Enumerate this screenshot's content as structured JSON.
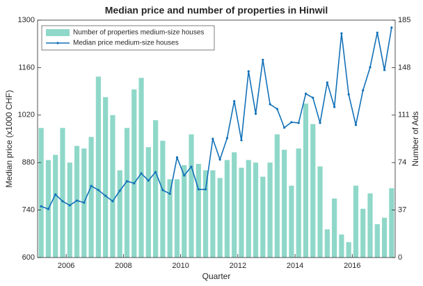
{
  "chart_data": {
    "type": "combo",
    "title": "Median price and number of properties in Hinwil",
    "xlabel": "Quarter",
    "ylabel": "Median price (x1000 CHF)",
    "y2label": "Number of Ads",
    "x": [
      2005.125,
      2005.375,
      2005.625,
      2005.875,
      2006.125,
      2006.375,
      2006.625,
      2006.875,
      2007.125,
      2007.375,
      2007.625,
      2007.875,
      2008.125,
      2008.375,
      2008.625,
      2008.875,
      2009.125,
      2009.375,
      2009.625,
      2009.875,
      2010.125,
      2010.375,
      2010.625,
      2010.875,
      2011.125,
      2011.375,
      2011.625,
      2011.875,
      2012.125,
      2012.375,
      2012.625,
      2012.875,
      2013.125,
      2013.375,
      2013.625,
      2013.875,
      2014.125,
      2014.375,
      2014.625,
      2014.875,
      2015.125,
      2015.375,
      2015.625,
      2015.875,
      2016.125,
      2016.375,
      2016.625,
      2016.875,
      2017.125,
      2017.375
    ],
    "xlim": [
      2005,
      2017.5
    ],
    "xticks": [
      2006,
      2008,
      2010,
      2012,
      2014,
      2016
    ],
    "ylim": [
      600,
      1300
    ],
    "yticks": [
      600,
      740,
      880,
      1020,
      1160,
      1300
    ],
    "y2lim": [
      0,
      185
    ],
    "y2ticks": [
      0,
      37,
      74,
      111,
      148,
      185
    ],
    "legend": "upper left",
    "series": [
      {
        "name": "Number of properties medium-size houses",
        "type": "bar",
        "axis": "y2",
        "color": "#8fd8c9",
        "values": [
          101,
          76,
          80,
          101,
          74,
          87,
          85,
          94,
          141,
          125,
          111,
          68,
          101,
          131,
          140,
          86,
          107,
          91,
          61,
          61,
          72,
          96,
          73,
          68,
          68,
          62,
          76,
          82,
          70,
          76,
          74,
          63,
          74,
          96,
          84,
          56,
          85,
          120,
          104,
          71,
          22,
          46,
          18,
          12,
          56,
          38,
          50,
          26,
          31,
          54
        ]
      },
      {
        "name": "Median price medium-size houses",
        "type": "line",
        "axis": "y",
        "color": "#1170b8",
        "values": [
          751,
          743,
          786,
          766,
          754,
          768,
          762,
          811,
          799,
          782,
          766,
          797,
          825,
          819,
          848,
          827,
          852,
          799,
          788,
          895,
          842,
          868,
          801,
          801,
          950,
          889,
          952,
          1061,
          946,
          1149,
          1024,
          1183,
          1052,
          1038,
          983,
          999,
          997,
          1083,
          1071,
          997,
          1116,
          1044,
          1261,
          1081,
          991,
          1093,
          1161,
          1263,
          1153,
          1278
        ]
      }
    ]
  }
}
